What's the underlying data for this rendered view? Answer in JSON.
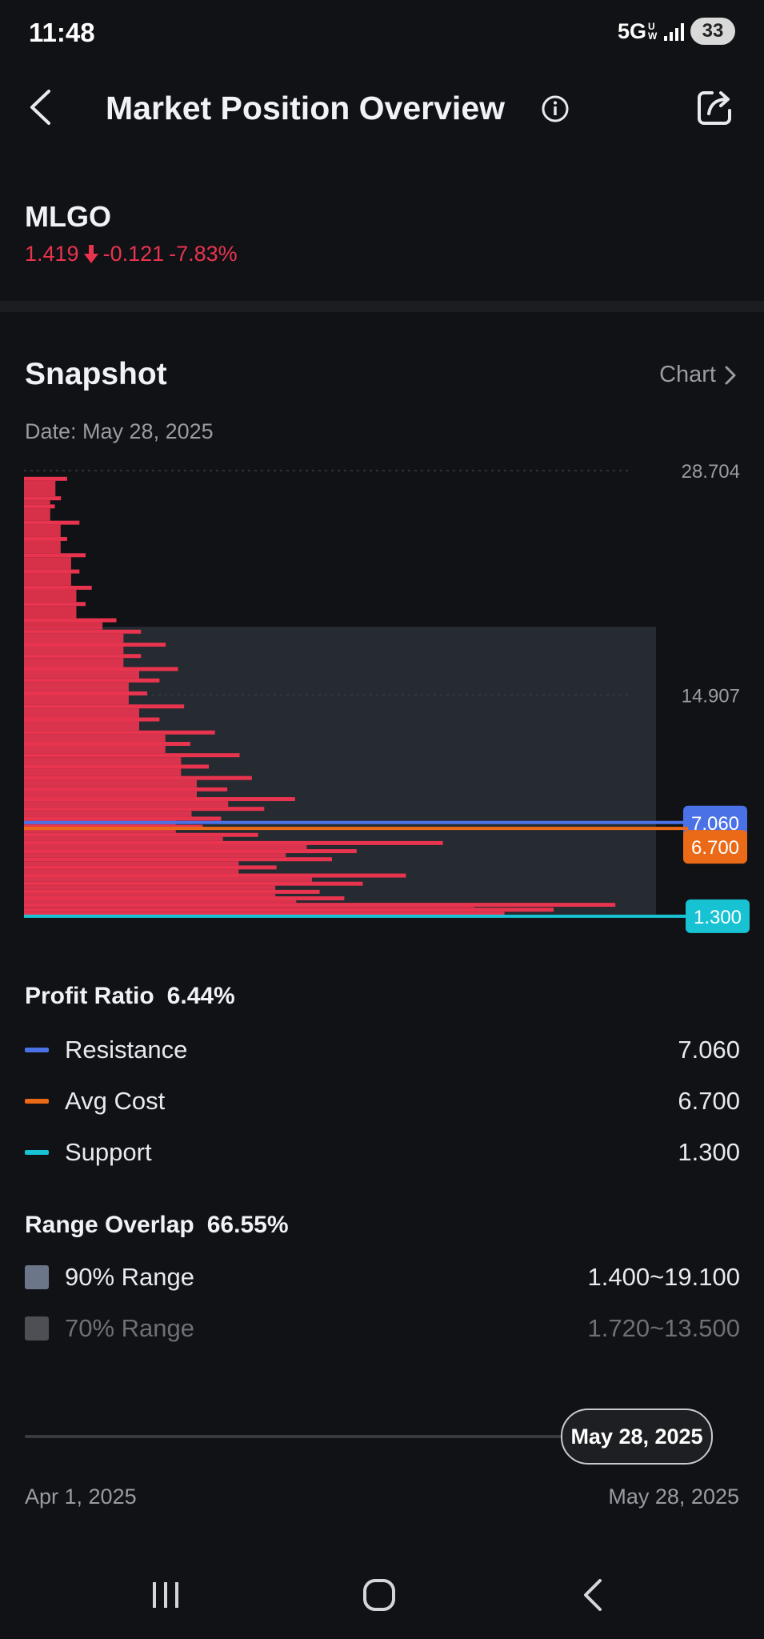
{
  "status_bar": {
    "time": "11:48",
    "network": "5G",
    "network_sub": "UW",
    "battery": "33"
  },
  "header": {
    "title": "Market Position Overview",
    "back_icon": "chevron-left-icon",
    "info_icon": "info-icon",
    "share_icon": "share-icon"
  },
  "ticker": {
    "symbol": "MLGO",
    "price": "1.419",
    "change": "-0.121",
    "change_pct": "-7.83%",
    "direction_icon": "arrow-down-icon",
    "color": "#e8344f"
  },
  "snapshot": {
    "title": "Snapshot",
    "chart_link": "Chart",
    "date_label": "Date: May 28, 2025"
  },
  "chart_data": {
    "type": "bar",
    "orientation": "horizontal",
    "title": "",
    "ylim": [
      0.8,
      29.1
    ],
    "y_ticks": [
      "28.704",
      "14.907"
    ],
    "bar_color": "#e8344f",
    "range_box": {
      "low": 1.4,
      "high": 19.1,
      "color": "#262a31"
    },
    "levels": [
      {
        "name": "Resistance",
        "value": 7.06,
        "label": "7.060",
        "color": "#4a72e6"
      },
      {
        "name": "Avg Cost",
        "value": 6.7,
        "label": "6.700",
        "color": "#ea6a17"
      },
      {
        "name": "Support",
        "value": 1.3,
        "label": "1.300",
        "color": "#17c2d3"
      }
    ],
    "profile": [
      {
        "price": 28.2,
        "weight": 0.07
      },
      {
        "price": 27.0,
        "weight": 0.06
      },
      {
        "price": 26.5,
        "weight": 0.05
      },
      {
        "price": 25.5,
        "weight": 0.09
      },
      {
        "price": 24.5,
        "weight": 0.07
      },
      {
        "price": 23.5,
        "weight": 0.1
      },
      {
        "price": 22.5,
        "weight": 0.09
      },
      {
        "price": 21.5,
        "weight": 0.11
      },
      {
        "price": 20.5,
        "weight": 0.1
      },
      {
        "price": 19.5,
        "weight": 0.15
      },
      {
        "price": 18.8,
        "weight": 0.19
      },
      {
        "price": 18.0,
        "weight": 0.23
      },
      {
        "price": 17.3,
        "weight": 0.19
      },
      {
        "price": 16.5,
        "weight": 0.25
      },
      {
        "price": 15.8,
        "weight": 0.22
      },
      {
        "price": 15.0,
        "weight": 0.2
      },
      {
        "price": 14.2,
        "weight": 0.26
      },
      {
        "price": 13.4,
        "weight": 0.22
      },
      {
        "price": 12.6,
        "weight": 0.31
      },
      {
        "price": 11.9,
        "weight": 0.27
      },
      {
        "price": 11.2,
        "weight": 0.35
      },
      {
        "price": 10.5,
        "weight": 0.3
      },
      {
        "price": 9.8,
        "weight": 0.37
      },
      {
        "price": 9.1,
        "weight": 0.33
      },
      {
        "price": 8.5,
        "weight": 0.44
      },
      {
        "price": 7.9,
        "weight": 0.39
      },
      {
        "price": 7.3,
        "weight": 0.32
      },
      {
        "price": 6.8,
        "weight": 0.29
      },
      {
        "price": 6.3,
        "weight": 0.38
      },
      {
        "price": 5.8,
        "weight": 0.68
      },
      {
        "price": 5.3,
        "weight": 0.54
      },
      {
        "price": 4.8,
        "weight": 0.5
      },
      {
        "price": 4.3,
        "weight": 0.41
      },
      {
        "price": 3.8,
        "weight": 0.62
      },
      {
        "price": 3.3,
        "weight": 0.55
      },
      {
        "price": 2.8,
        "weight": 0.48
      },
      {
        "price": 2.4,
        "weight": 0.52
      },
      {
        "price": 2.0,
        "weight": 0.96
      },
      {
        "price": 1.7,
        "weight": 0.86
      },
      {
        "price": 1.45,
        "weight": 0.78
      }
    ]
  },
  "profit_ratio": {
    "label": "Profit Ratio",
    "value": "6.44%",
    "items": [
      {
        "label": "Resistance",
        "value": "7.060",
        "color": "#4a72e6"
      },
      {
        "label": "Avg Cost",
        "value": "6.700",
        "color": "#ea6a17"
      },
      {
        "label": "Support",
        "value": "1.300",
        "color": "#17c2d3"
      }
    ]
  },
  "range_overlap": {
    "label": "Range Overlap",
    "value": "66.55%",
    "items": [
      {
        "label": "90% Range",
        "value": "1.400~19.100",
        "color": "#6b7689",
        "active": true
      },
      {
        "label": "70% Range",
        "value": "1.720~13.500",
        "color": "#4e4f55",
        "active": false
      }
    ]
  },
  "date_slider": {
    "selected": "May 28, 2025",
    "start": "Apr 1, 2025",
    "end": "May 28, 2025",
    "position": 1.0
  },
  "nav_bar": {
    "recent_icon": "recent-apps-icon",
    "home_icon": "home-icon",
    "back_icon": "back-icon"
  }
}
